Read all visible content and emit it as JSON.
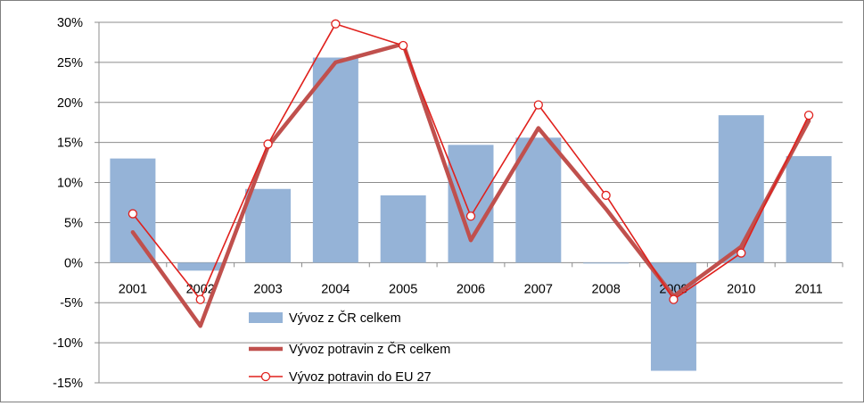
{
  "chart_data": {
    "type": "bar",
    "categories": [
      "2001",
      "2002",
      "2003",
      "2004",
      "2005",
      "2006",
      "2007",
      "2008",
      "2009",
      "2010",
      "2011"
    ],
    "y_ticks": [
      "30%",
      "25%",
      "20%",
      "15%",
      "10%",
      "5%",
      "0%",
      "-5%",
      "-10%",
      "-15%"
    ],
    "ylim": [
      -15,
      30
    ],
    "grid": true,
    "legend_position": "bottom-center",
    "series": [
      {
        "name": "Vývoz z ČR celkem",
        "kind": "bar",
        "color": "#95b3d7",
        "values": [
          13.0,
          -1.0,
          9.2,
          25.6,
          8.4,
          14.7,
          15.6,
          -0.1,
          -13.5,
          18.4,
          13.3
        ]
      },
      {
        "name": "Vývoz potravin z ČR celkem",
        "kind": "line",
        "color": "#c0504d",
        "values": [
          3.8,
          -7.9,
          14.5,
          25.0,
          27.3,
          2.8,
          16.8,
          6.7,
          -4.2,
          2.0,
          17.7
        ]
      },
      {
        "name": "Vývoz potravin do EU 27",
        "kind": "line-marker",
        "color": "#e0201c",
        "values": [
          6.1,
          -4.6,
          14.8,
          29.8,
          27.1,
          5.8,
          19.7,
          8.4,
          -4.6,
          1.2,
          18.4
        ]
      }
    ]
  }
}
